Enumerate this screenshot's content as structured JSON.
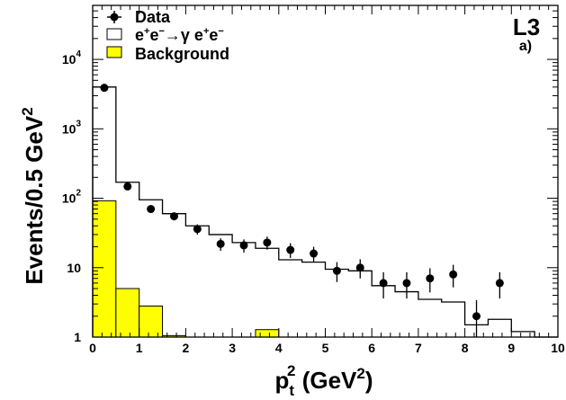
{
  "chart_data": {
    "type": "histogram",
    "y_scale": "log",
    "xlim": [
      0,
      10
    ],
    "ylim": [
      1,
      60000
    ],
    "bin_width": 0.5,
    "x_ticks": [
      "0",
      "1",
      "2",
      "3",
      "4",
      "5",
      "6",
      "7",
      "8",
      "9",
      "10"
    ],
    "y_ticks": [
      {
        "value": 1,
        "base": "1",
        "exp": ""
      },
      {
        "value": 10,
        "base": "10",
        "exp": ""
      },
      {
        "value": 100,
        "base": "10",
        "exp": "2"
      },
      {
        "value": 1000,
        "base": "10",
        "exp": "3"
      },
      {
        "value": 10000,
        "base": "10",
        "exp": "4"
      }
    ],
    "xlabel": {
      "main": "p",
      "sub": "t",
      "sup": "2",
      "rest": " (GeV",
      "rest_sup": "2",
      "close": ")"
    },
    "ylabel": {
      "main": "Events/0.5 GeV",
      "sup": "2"
    },
    "experiment": "L3",
    "panel": "a)",
    "legend": {
      "data": "Data",
      "signal": {
        "parts": [
          "e",
          "+",
          "e",
          "−",
          "→γ e",
          "+",
          "e",
          "−"
        ]
      },
      "background": "Background"
    },
    "colors": {
      "background_fill": "#ffff00",
      "line": "#000000",
      "marker": "#000000"
    },
    "series": [
      {
        "name": "Data",
        "kind": "points",
        "x": [
          0.25,
          0.75,
          1.25,
          1.75,
          2.25,
          2.75,
          3.25,
          3.75,
          4.25,
          4.75,
          5.25,
          5.75,
          6.25,
          6.75,
          7.25,
          7.75,
          8.25,
          8.75
        ],
        "y": [
          3900,
          148,
          70,
          55,
          36,
          22,
          21,
          23,
          18,
          16,
          9,
          10,
          6,
          6,
          7,
          8,
          2,
          6
        ],
        "err_lo": [
          3840,
          136,
          62,
          48,
          30,
          17.5,
          16.5,
          18.2,
          13.8,
          12.2,
          6.2,
          7,
          3.6,
          3.6,
          4.4,
          5.2,
          1,
          3.6
        ],
        "err_hi": [
          3960,
          160,
          78,
          62,
          42,
          26.5,
          25.5,
          28,
          22.5,
          20,
          12,
          13.2,
          8.6,
          8.6,
          9.8,
          11,
          3.4,
          8.6
        ]
      },
      {
        "name": "e+e−→γ e+e−",
        "kind": "step",
        "edges": [
          0,
          0.5,
          1,
          1.5,
          2,
          2.5,
          3,
          3.5,
          4,
          4.5,
          5,
          5.5,
          6,
          6.5,
          7,
          7.5,
          8,
          8.5,
          9,
          9.5,
          10
        ],
        "values": [
          4000,
          170,
          95,
          60,
          40,
          30,
          23,
          19,
          13,
          12,
          9.5,
          9,
          5.5,
          4.5,
          3.5,
          3.2,
          1.5,
          1.8,
          1.2,
          1.0
        ]
      },
      {
        "name": "Background",
        "kind": "filled-step",
        "edges": [
          0,
          0.5,
          1,
          1.5,
          2,
          2.5,
          3,
          3.5,
          4,
          4.5,
          5,
          5.5,
          6,
          6.5,
          7,
          7.5,
          8,
          8.5,
          9,
          9.5,
          10
        ],
        "values": [
          92,
          5,
          2.8,
          1.05,
          1,
          1,
          1,
          1.28,
          1,
          1,
          1,
          1,
          1,
          1,
          1,
          1,
          1,
          1,
          1,
          1
        ]
      }
    ],
    "grid": false,
    "legend_placement": "top-left"
  }
}
